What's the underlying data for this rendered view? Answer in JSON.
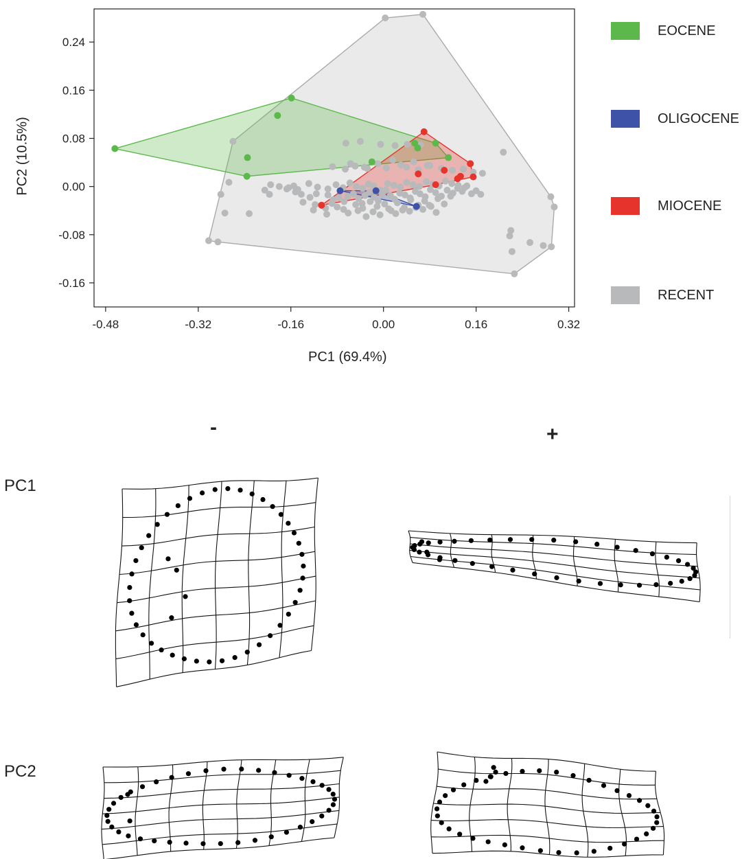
{
  "chart_data": {
    "type": "scatter",
    "title": "",
    "xlabel": "PC1  (69.4%)",
    "ylabel": "PC2  (10.5%)",
    "xlim": [
      -0.5,
      0.33
    ],
    "ylim": [
      -0.2,
      0.295
    ],
    "xticks": [
      -0.48,
      -0.32,
      -0.16,
      0.0,
      0.16,
      0.32
    ],
    "xtick_labels": [
      "-0.48",
      "-0.32",
      "-0.16",
      "0.00",
      "0.16",
      "0.32"
    ],
    "yticks": [
      0.24,
      0.16,
      0.08,
      0.0,
      -0.08,
      -0.16
    ],
    "ytick_labels": [
      "0.24",
      "0.16",
      "0.08",
      "0.00",
      "-0.08",
      "-0.16"
    ],
    "grid": false,
    "legend_position": "right",
    "series": [
      {
        "name": "EOCENE",
        "color": "#5cb84a",
        "hull": true,
        "x": [
          -0.464,
          -0.159,
          -0.183,
          -0.235,
          -0.236,
          0.054,
          0.059,
          0.09,
          0.112,
          -0.02
        ],
        "y": [
          0.063,
          0.147,
          0.118,
          0.048,
          0.017,
          0.072,
          0.064,
          0.072,
          0.048,
          0.041
        ]
      },
      {
        "name": "OLIGOCENE",
        "color": "#3e52a8",
        "hull": true,
        "x": [
          -0.075,
          -0.013,
          0.057
        ],
        "y": [
          -0.007,
          -0.007,
          -0.033
        ]
      },
      {
        "name": "MIOCENE",
        "color": "#e6342c",
        "hull": true,
        "x": [
          -0.107,
          0.07,
          0.15,
          0.155,
          0.133,
          0.128,
          0.105,
          0.06,
          0.09
        ],
        "y": [
          -0.031,
          0.091,
          0.038,
          0.016,
          0.017,
          0.013,
          0.027,
          0.021,
          0.003
        ]
      },
      {
        "name": "RECENT",
        "color": "#b8b9bb",
        "hull": true,
        "x": [
          0.003,
          0.068,
          0.207,
          0.295,
          0.289,
          0.226,
          0.222,
          0.218,
          0.253,
          0.22,
          0.276,
          0.29,
          -0.302,
          -0.286,
          -0.281,
          -0.267,
          -0.274,
          -0.26,
          -0.232,
          -0.195,
          -0.197,
          -0.205,
          -0.18,
          -0.167,
          -0.152,
          -0.142,
          -0.116,
          -0.139,
          -0.118,
          -0.1,
          -0.096,
          -0.087,
          -0.077,
          -0.068,
          -0.062,
          -0.052,
          -0.043,
          -0.037,
          -0.032,
          -0.024,
          -0.016,
          -0.009,
          -0.002,
          0.004,
          0.012,
          0.019,
          0.028,
          0.037,
          0.046,
          0.055,
          0.063,
          0.072,
          0.081,
          0.09,
          0.1,
          0.11,
          0.12,
          0.128,
          0.136,
          0.144,
          0.152,
          0.16,
          0.168,
          -0.164,
          -0.148,
          -0.129,
          -0.114,
          -0.096,
          -0.082,
          -0.07,
          -0.058,
          -0.047,
          -0.036,
          -0.026,
          -0.017,
          -0.005,
          0.007,
          0.018,
          0.029,
          0.04,
          0.051,
          0.062,
          0.074,
          0.085,
          0.096,
          0.107,
          0.118,
          0.129,
          0.14,
          -0.155,
          -0.127,
          -0.105,
          -0.089,
          -0.069,
          -0.048,
          -0.036,
          -0.023,
          -0.011,
          0.002,
          0.013,
          0.024,
          0.036,
          0.047,
          0.06,
          0.071,
          0.082,
          0.094,
          0.105,
          0.116,
          -0.121,
          -0.098,
          -0.08,
          -0.061,
          -0.044,
          -0.03,
          -0.018,
          -0.006,
          0.009,
          0.021,
          0.033,
          0.045,
          0.056,
          0.068,
          0.079,
          0.091,
          -0.088,
          -0.066,
          -0.049,
          -0.028,
          -0.01,
          0.005,
          0.016,
          0.03,
          0.041,
          0.052,
          0.064,
          0.076,
          -0.057,
          -0.033,
          0.04,
          0.06,
          0.08,
          0.1,
          0.119,
          0.138,
          0.155,
          0.171,
          -0.065,
          -0.04,
          -0.005,
          0.02
        ],
        "y": [
          0.28,
          0.286,
          0.057,
          -0.034,
          -0.017,
          -0.145,
          -0.108,
          -0.082,
          -0.093,
          -0.073,
          -0.098,
          -0.1,
          -0.09,
          -0.092,
          -0.013,
          0.007,
          -0.044,
          0.075,
          -0.045,
          0.003,
          -0.013,
          -0.006,
          0.0,
          -0.004,
          -0.009,
          -0.013,
          -0.012,
          -0.026,
          -0.03,
          -0.036,
          -0.014,
          -0.022,
          -0.018,
          -0.025,
          -0.016,
          -0.012,
          -0.02,
          -0.028,
          -0.015,
          -0.009,
          -0.018,
          -0.024,
          -0.013,
          -0.006,
          -0.015,
          -0.021,
          -0.011,
          -0.014,
          -0.019,
          -0.008,
          -0.012,
          -0.017,
          -0.005,
          -0.01,
          -0.016,
          -0.006,
          -0.011,
          -0.003,
          -0.008,
          0.001,
          -0.012,
          -0.007,
          -0.013,
          -0.002,
          -0.005,
          0.005,
          -0.001,
          -0.004,
          0.003,
          -0.002,
          0.006,
          0.0,
          -0.003,
          0.004,
          0.001,
          -0.006,
          0.005,
          0.002,
          -0.001,
          0.007,
          0.003,
          0.0,
          0.008,
          0.004,
          0.001,
          0.009,
          0.005,
          0.002,
          -0.002,
          0.001,
          -0.018,
          -0.032,
          -0.028,
          -0.038,
          -0.03,
          -0.036,
          -0.025,
          -0.033,
          -0.029,
          -0.04,
          -0.027,
          -0.035,
          -0.022,
          -0.031,
          -0.024,
          -0.033,
          -0.02,
          -0.029,
          -0.016,
          -0.039,
          -0.046,
          -0.034,
          -0.044,
          -0.04,
          -0.05,
          -0.042,
          -0.047,
          -0.037,
          -0.045,
          -0.039,
          -0.041,
          -0.035,
          -0.038,
          -0.031,
          -0.043,
          0.033,
          0.029,
          0.034,
          0.03,
          0.038,
          0.031,
          0.044,
          0.036,
          0.07,
          0.041,
          0.069,
          0.035,
          0.038,
          0.032,
          0.032,
          0.028,
          0.035,
          0.03,
          0.027,
          0.029,
          0.024,
          0.022,
          0.072,
          0.075,
          0.07,
          0.068
        ]
      }
    ]
  },
  "shape_panel": {
    "rows": [
      {
        "label": "PC1"
      },
      {
        "label": "PC2"
      }
    ],
    "columns": [
      {
        "sign": "-"
      },
      {
        "sign": "+"
      }
    ]
  }
}
